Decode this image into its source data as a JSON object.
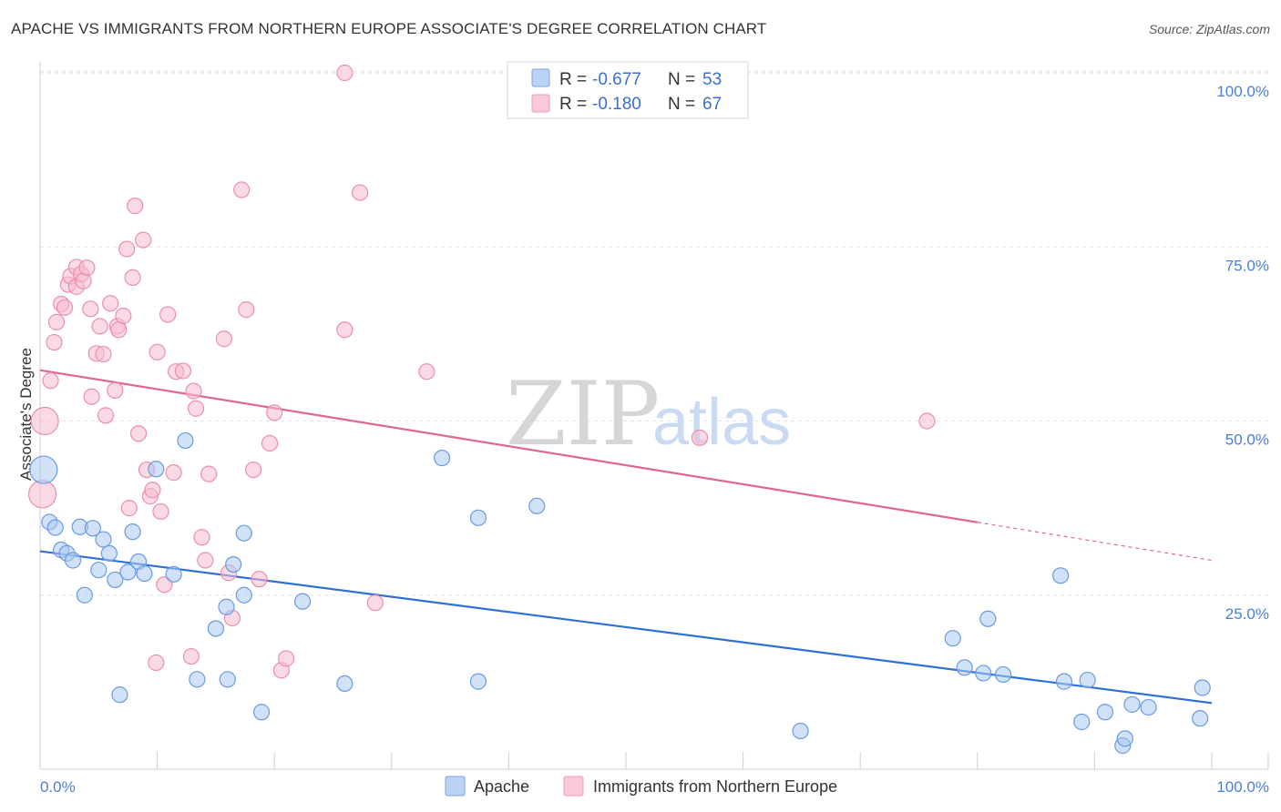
{
  "title": "APACHE VS IMMIGRANTS FROM NORTHERN EUROPE ASSOCIATE'S DEGREE CORRELATION CHART",
  "source": "Source: ZipAtlas.com",
  "watermark": {
    "zip": "ZIP",
    "atlas": "atlas"
  },
  "colors": {
    "apache_fill": "#a9c8f3",
    "apache_stroke": "#6a9be0",
    "apache_line": "#2f6fd6",
    "immig_fill": "#f7bccd",
    "immig_stroke": "#ea8fab",
    "immig_line": "#e0668f",
    "grid": "#e2e2e2",
    "tick_text": "#4a7fd4"
  },
  "legend": {
    "apache": {
      "r_label": "R =",
      "r_value": "-0.677",
      "n_label": "N =",
      "n_value": "53"
    },
    "immig": {
      "r_label": "R =",
      "r_value": "-0.180",
      "n_label": "N =",
      "n_value": "67"
    }
  },
  "chart_data": {
    "type": "scatter",
    "title": "APACHE VS IMMIGRANTS FROM NORTHERN EUROPE ASSOCIATE'S DEGREE CORRELATION CHART",
    "xlabel": "",
    "ylabel": "Associate's Degree",
    "xlim": [
      0,
      100
    ],
    "ylim": [
      0,
      102
    ],
    "x_tick_labels": [
      "0.0%",
      "100.0%"
    ],
    "y_ticks": [
      25,
      50,
      75,
      100
    ],
    "y_tick_labels": [
      "25.0%",
      "50.0%",
      "75.0%",
      "100.0%"
    ],
    "series": [
      {
        "name": "Apache",
        "r": -0.677,
        "n": 53,
        "trend": {
          "x0": 0,
          "y0": 31.3,
          "x1": 100,
          "y1": 9.5,
          "solid_to": 100
        },
        "points": [
          {
            "x": 0.3,
            "y": 43,
            "big": true
          },
          {
            "x": 0.8,
            "y": 35.5
          },
          {
            "x": 1.3,
            "y": 34.7
          },
          {
            "x": 1.8,
            "y": 31.5
          },
          {
            "x": 2.3,
            "y": 31
          },
          {
            "x": 2.8,
            "y": 30
          },
          {
            "x": 3.4,
            "y": 34.8
          },
          {
            "x": 3.8,
            "y": 25
          },
          {
            "x": 4.5,
            "y": 34.6
          },
          {
            "x": 5,
            "y": 28.6
          },
          {
            "x": 5.4,
            "y": 33
          },
          {
            "x": 5.9,
            "y": 31
          },
          {
            "x": 6.4,
            "y": 27.2
          },
          {
            "x": 6.8,
            "y": 10.7
          },
          {
            "x": 7.5,
            "y": 28.3
          },
          {
            "x": 7.9,
            "y": 34.1
          },
          {
            "x": 8.4,
            "y": 29.8
          },
          {
            "x": 8.9,
            "y": 28.1
          },
          {
            "x": 9.9,
            "y": 43.1
          },
          {
            "x": 11.4,
            "y": 28
          },
          {
            "x": 12.4,
            "y": 47.2
          },
          {
            "x": 13.4,
            "y": 12.9
          },
          {
            "x": 15,
            "y": 20.2
          },
          {
            "x": 15.9,
            "y": 23.3
          },
          {
            "x": 16,
            "y": 12.9
          },
          {
            "x": 16.5,
            "y": 29.4
          },
          {
            "x": 17.4,
            "y": 33.9
          },
          {
            "x": 17.4,
            "y": 25
          },
          {
            "x": 18.9,
            "y": 8.2
          },
          {
            "x": 22.4,
            "y": 24.1
          },
          {
            "x": 26,
            "y": 12.3
          },
          {
            "x": 34.3,
            "y": 44.7
          },
          {
            "x": 37.4,
            "y": 36.1
          },
          {
            "x": 37.4,
            "y": 12.6
          },
          {
            "x": 42.4,
            "y": 37.8
          },
          {
            "x": 64.9,
            "y": 5.5
          },
          {
            "x": 77.9,
            "y": 18.8
          },
          {
            "x": 78.9,
            "y": 14.6
          },
          {
            "x": 80.5,
            "y": 13.8
          },
          {
            "x": 80.9,
            "y": 21.6
          },
          {
            "x": 82.2,
            "y": 13.6
          },
          {
            "x": 87.1,
            "y": 27.8
          },
          {
            "x": 87.4,
            "y": 12.6
          },
          {
            "x": 88.9,
            "y": 6.8
          },
          {
            "x": 89.4,
            "y": 12.8
          },
          {
            "x": 90.9,
            "y": 8.2
          },
          {
            "x": 92.4,
            "y": 3.4
          },
          {
            "x": 92.6,
            "y": 4.4
          },
          {
            "x": 93.2,
            "y": 9.3
          },
          {
            "x": 94.6,
            "y": 8.9
          },
          {
            "x": 99,
            "y": 7.3
          },
          {
            "x": 99.2,
            "y": 11.7
          }
        ]
      },
      {
        "name": "Immigrants from Northern Europe",
        "r": -0.18,
        "n": 67,
        "trend": {
          "x0": 0,
          "y0": 57.3,
          "x1": 100,
          "y1": 30.0,
          "solid_to": 80
        },
        "points": [
          {
            "x": 0.2,
            "y": 39.5,
            "big": true
          },
          {
            "x": 0.4,
            "y": 50,
            "big": true
          },
          {
            "x": 0.9,
            "y": 55.8
          },
          {
            "x": 1.2,
            "y": 61.3
          },
          {
            "x": 1.4,
            "y": 64.2
          },
          {
            "x": 1.8,
            "y": 66.8
          },
          {
            "x": 2.1,
            "y": 66.3
          },
          {
            "x": 2.4,
            "y": 69.6
          },
          {
            "x": 2.6,
            "y": 70.8
          },
          {
            "x": 3.1,
            "y": 69.3
          },
          {
            "x": 3.1,
            "y": 72.1
          },
          {
            "x": 3.5,
            "y": 71.1
          },
          {
            "x": 3.7,
            "y": 70.1
          },
          {
            "x": 4,
            "y": 72
          },
          {
            "x": 4.3,
            "y": 66.1
          },
          {
            "x": 4.4,
            "y": 53.5
          },
          {
            "x": 4.8,
            "y": 59.7
          },
          {
            "x": 5.1,
            "y": 63.6
          },
          {
            "x": 5.4,
            "y": 59.6
          },
          {
            "x": 5.6,
            "y": 50.8
          },
          {
            "x": 6,
            "y": 66.9
          },
          {
            "x": 6.4,
            "y": 54.4
          },
          {
            "x": 6.6,
            "y": 63.6
          },
          {
            "x": 6.7,
            "y": 63.1
          },
          {
            "x": 7.1,
            "y": 65.1
          },
          {
            "x": 7.4,
            "y": 74.7
          },
          {
            "x": 7.6,
            "y": 37.5
          },
          {
            "x": 7.9,
            "y": 70.6
          },
          {
            "x": 8.1,
            "y": 80.9
          },
          {
            "x": 8.4,
            "y": 48.2
          },
          {
            "x": 8.8,
            "y": 76
          },
          {
            "x": 9.1,
            "y": 43
          },
          {
            "x": 9.4,
            "y": 39.2
          },
          {
            "x": 9.6,
            "y": 40.1
          },
          {
            "x": 9.9,
            "y": 15.3
          },
          {
            "x": 10,
            "y": 59.9
          },
          {
            "x": 10.3,
            "y": 37
          },
          {
            "x": 10.6,
            "y": 26.5
          },
          {
            "x": 10.9,
            "y": 65.3
          },
          {
            "x": 11.4,
            "y": 42.6
          },
          {
            "x": 11.6,
            "y": 57.1
          },
          {
            "x": 12.2,
            "y": 57.2
          },
          {
            "x": 12.9,
            "y": 16.2
          },
          {
            "x": 13.1,
            "y": 54.3
          },
          {
            "x": 13.3,
            "y": 51.8
          },
          {
            "x": 13.8,
            "y": 33.3
          },
          {
            "x": 14.1,
            "y": 30
          },
          {
            "x": 14.4,
            "y": 42.4
          },
          {
            "x": 15.7,
            "y": 61.8
          },
          {
            "x": 16.1,
            "y": 28.2
          },
          {
            "x": 16.4,
            "y": 21.7
          },
          {
            "x": 17.2,
            "y": 83.2
          },
          {
            "x": 17.6,
            "y": 66
          },
          {
            "x": 18.2,
            "y": 43
          },
          {
            "x": 18.7,
            "y": 27.3
          },
          {
            "x": 19.6,
            "y": 46.8
          },
          {
            "x": 20,
            "y": 51.2
          },
          {
            "x": 20.6,
            "y": 14.2
          },
          {
            "x": 21,
            "y": 15.9
          },
          {
            "x": 26,
            "y": 100
          },
          {
            "x": 26,
            "y": 63.1
          },
          {
            "x": 27.3,
            "y": 82.8
          },
          {
            "x": 28.6,
            "y": 23.9
          },
          {
            "x": 33,
            "y": 57.1
          },
          {
            "x": 56.3,
            "y": 47.6
          },
          {
            "x": 75.7,
            "y": 50
          }
        ]
      }
    ]
  },
  "bottom_legend": {
    "apache": "Apache",
    "immig": "Immigrants from Northern Europe"
  }
}
